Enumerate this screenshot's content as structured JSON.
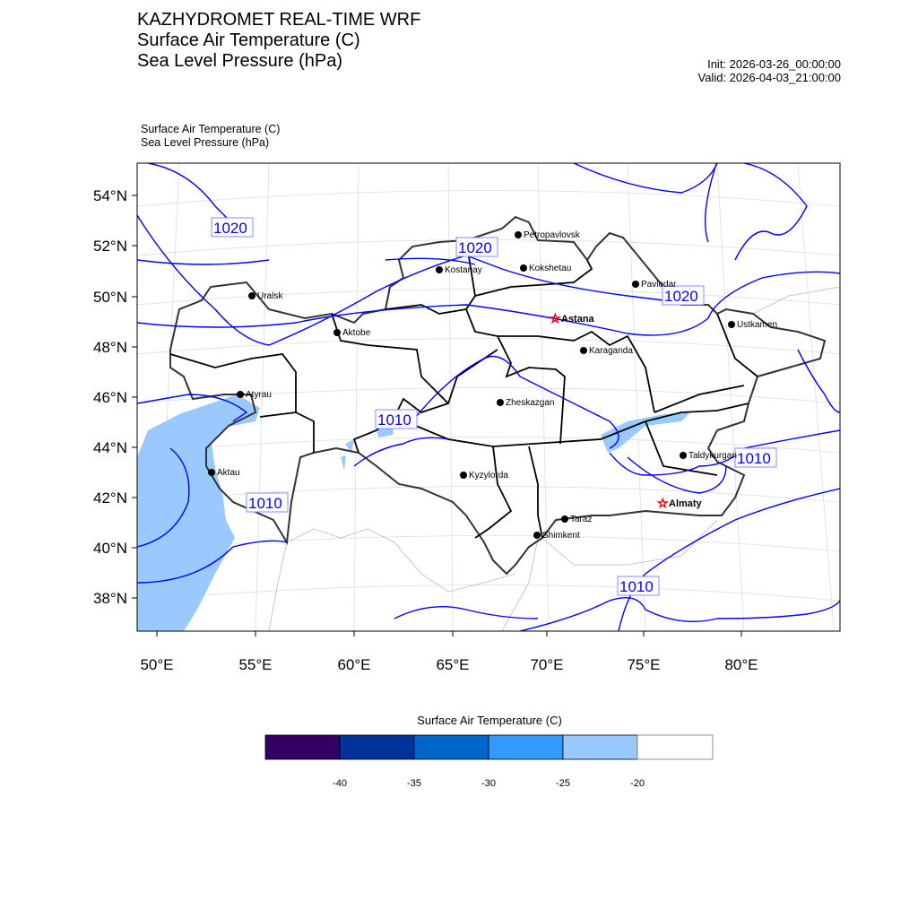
{
  "header": {
    "title_lines": [
      "KAZHYDROMET REAL-TIME WRF",
      "Surface Air Temperature  (C)",
      "Sea Level Pressure  (hPa)"
    ],
    "init": "Init: 2026-03-26_00:00:00",
    "valid": "Valid: 2026-04-03_21:00:00",
    "sub_lines": [
      "Surface Air Temperature   (C)",
      "Sea Level Pressure   (hPa)"
    ]
  },
  "axes": {
    "lat_labels": [
      "54°N",
      "52°N",
      "50°N",
      "48°N",
      "46°N",
      "44°N",
      "42°N",
      "40°N",
      "38°N"
    ],
    "lon_labels": [
      "50°E",
      "55°E",
      "60°E",
      "65°E",
      "70°E",
      "75°E",
      "80°E"
    ]
  },
  "cities": {
    "petropavlovsk": "Petropavlovsk",
    "kostanay": "Kostanay",
    "kokshetau": "Kokshetau",
    "pavlodar": "Pavlodar",
    "uralsk": "Uralsk",
    "aktobe": "Aktobe",
    "astana": "Astana",
    "ustkamen": "Ustkamen",
    "karaganda": "Karaganda",
    "atyrau": "Atyrau",
    "zheskazgan": "Zheskazgan",
    "aktau": "Aktau",
    "kyzylorda": "Kyzylorda",
    "taldykurgan": "Taldykurgan",
    "almaty": "Almaty",
    "taraz": "Taraz",
    "shimkent": "Shimkent"
  },
  "isobar_labels": [
    "1020",
    "1020",
    "1020",
    "1010",
    "1010",
    "1010",
    "1010"
  ],
  "colorbar": {
    "title": "Surface Air Temperature (C)",
    "colors": [
      "#330066",
      "#003399",
      "#0066cc",
      "#3399ff",
      "#99c9ff",
      "#ffffff"
    ],
    "labels": [
      "-40",
      "-35",
      "-30",
      "-25",
      "-20"
    ]
  },
  "colors": {
    "isobar": "#0000ff",
    "border": "#000000",
    "cold_fill": "#99c9ff",
    "capital_star": "#ff0000"
  }
}
